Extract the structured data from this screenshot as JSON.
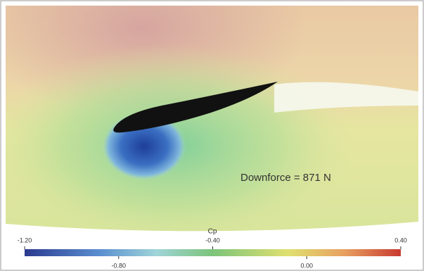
{
  "annotation": "Downforce = 871 N",
  "colorbar": {
    "label": "Cp",
    "range": [
      -1.2,
      0.4
    ],
    "top_ticks": [
      {
        "value": -1.2,
        "label": "-1.20"
      },
      {
        "value": -0.4,
        "label": "-0.40"
      },
      {
        "value": 0.4,
        "label": "0.40"
      }
    ],
    "bottom_ticks": [
      {
        "value": -0.8,
        "label": "-0.80"
      },
      {
        "value": 0,
        "label": "0.00"
      }
    ]
  }
}
